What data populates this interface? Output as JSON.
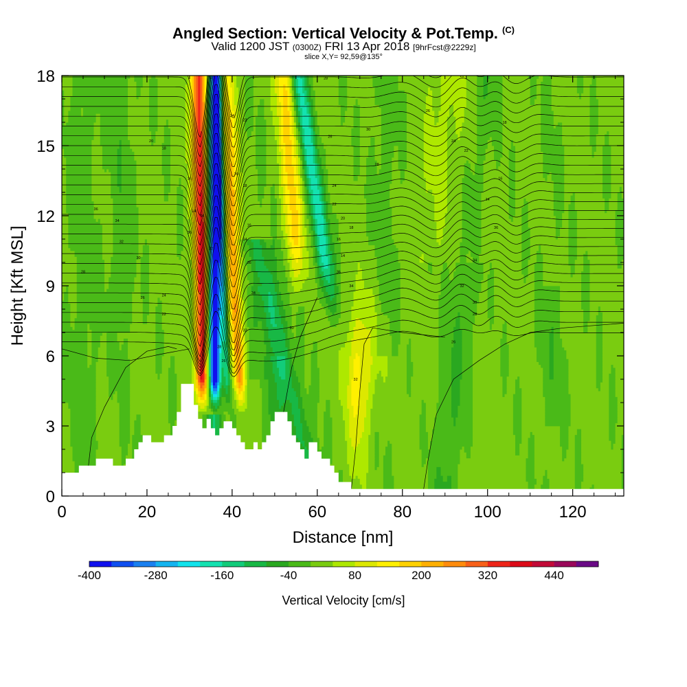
{
  "header": {
    "title": "Angled Section: Vertical Velocity & Pot.Temp.",
    "title_suffix": "(C)",
    "subtitle_a": "Valid 1200 JST",
    "subtitle_b": "(0300Z)",
    "subtitle_c": "FRI 13 Apr 2018",
    "subtitle_d": "[9hrFcst@2229z]",
    "slice": "slice X,Y= 92,59@135°"
  },
  "chart_data": {
    "type": "heatmap",
    "xlabel": "Distance [nm]",
    "ylabel": "Height [Kft MSL]",
    "xlim": [
      0,
      132
    ],
    "ylim": [
      0,
      18
    ],
    "x_ticks": [
      0,
      20,
      40,
      60,
      80,
      100,
      120
    ],
    "y_ticks": [
      0,
      3,
      6,
      9,
      12,
      15,
      18
    ],
    "field": "Vertical Velocity",
    "colorbar": {
      "label": "Vertical Velocity [cm/s]",
      "tick_labels": [
        "-400",
        "-280",
        "-160",
        "-40",
        "80",
        "200",
        "320",
        "440"
      ],
      "levels": [
        -400,
        -360,
        -320,
        -280,
        -240,
        -200,
        -160,
        -120,
        -80,
        -40,
        0,
        40,
        80,
        120,
        160,
        200,
        240,
        280,
        320,
        360,
        400,
        440,
        480,
        520
      ],
      "colors": [
        "#1010ee",
        "#0f4ff0",
        "#1a80f0",
        "#14b4f0",
        "#12e3ec",
        "#14e2b0",
        "#12cc7a",
        "#18b845",
        "#2aa820",
        "#4aba18",
        "#7acc10",
        "#aee800",
        "#dde800",
        "#fff000",
        "#ffd200",
        "#ffb000",
        "#ff8c0c",
        "#f86018",
        "#ee2418",
        "#dc0a18",
        "#c20a38",
        "#9a085a",
        "#6a0a86"
      ]
    },
    "contour": "Potential Temperature (C)",
    "contour_labels": [
      "36",
      "34",
      "32",
      "30",
      "28",
      "26",
      "24",
      "22",
      "20",
      "18",
      "16",
      "14"
    ],
    "terrain": [
      [
        0,
        1.0
      ],
      [
        4,
        1.0
      ],
      [
        4,
        1.3
      ],
      [
        8,
        1.3
      ],
      [
        8,
        1.6
      ],
      [
        12,
        1.6
      ],
      [
        12,
        1.3
      ],
      [
        15,
        1.3
      ],
      [
        15,
        1.6
      ],
      [
        17,
        1.6
      ],
      [
        17,
        2.0
      ],
      [
        18,
        2.0
      ],
      [
        18,
        2.3
      ],
      [
        19,
        2.3
      ],
      [
        19,
        2.6
      ],
      [
        21,
        2.6
      ],
      [
        21,
        2.3
      ],
      [
        24,
        2.3
      ],
      [
        24,
        2.6
      ],
      [
        26,
        2.6
      ],
      [
        26,
        3.0
      ],
      [
        27,
        3.0
      ],
      [
        27,
        3.6
      ],
      [
        28,
        3.6
      ],
      [
        28,
        4.8
      ],
      [
        31,
        4.8
      ],
      [
        31,
        3.9
      ],
      [
        32,
        3.9
      ],
      [
        32,
        3.3
      ],
      [
        33,
        3.3
      ],
      [
        33,
        2.9
      ],
      [
        34,
        2.9
      ],
      [
        34,
        3.3
      ],
      [
        35,
        3.3
      ],
      [
        35,
        2.9
      ],
      [
        36,
        2.9
      ],
      [
        36,
        2.6
      ],
      [
        37,
        2.6
      ],
      [
        37,
        2.9
      ],
      [
        38,
        2.9
      ],
      [
        38,
        3.2
      ],
      [
        40,
        3.2
      ],
      [
        40,
        2.9
      ],
      [
        41,
        2.9
      ],
      [
        41,
        2.6
      ],
      [
        42,
        2.6
      ],
      [
        42,
        2.3
      ],
      [
        43,
        2.3
      ],
      [
        43,
        2.0
      ],
      [
        45,
        2.0
      ],
      [
        45,
        2.3
      ],
      [
        46,
        2.3
      ],
      [
        46,
        2.0
      ],
      [
        47,
        2.0
      ],
      [
        47,
        2.3
      ],
      [
        48,
        2.3
      ],
      [
        48,
        2.6
      ],
      [
        49,
        2.6
      ],
      [
        49,
        3.2
      ],
      [
        50,
        3.2
      ],
      [
        50,
        3.6
      ],
      [
        53,
        3.6
      ],
      [
        53,
        3.2
      ],
      [
        54,
        3.2
      ],
      [
        54,
        2.6
      ],
      [
        55,
        2.6
      ],
      [
        55,
        2.3
      ],
      [
        56,
        2.3
      ],
      [
        56,
        2.0
      ],
      [
        57,
        2.0
      ],
      [
        57,
        1.6
      ],
      [
        58,
        1.6
      ],
      [
        58,
        2.3
      ],
      [
        60,
        2.3
      ],
      [
        60,
        1.9
      ],
      [
        61,
        1.9
      ],
      [
        61,
        1.6
      ],
      [
        63,
        1.6
      ],
      [
        63,
        1.3
      ],
      [
        64,
        1.3
      ],
      [
        64,
        1.0
      ],
      [
        65,
        1.0
      ],
      [
        65,
        0.6
      ],
      [
        68,
        0.6
      ],
      [
        68,
        0.3
      ],
      [
        132,
        0.3
      ],
      [
        132,
        0
      ]
    ]
  }
}
